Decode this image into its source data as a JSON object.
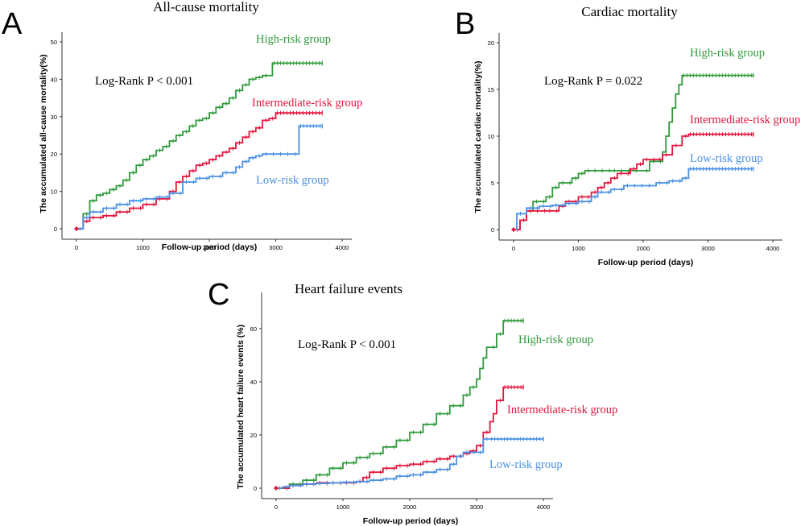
{
  "chart_data": [
    {
      "type": "line",
      "panel": "A",
      "title": "All-cause mortality",
      "xlabel": "Follow-up period (days)",
      "ylabel": "The accumulated all-cause mortality(%)",
      "xlim": [
        0,
        4000
      ],
      "ylim": [
        0,
        50
      ],
      "xticks": [
        0,
        1000,
        2000,
        3000,
        4000
      ],
      "yticks": [
        0,
        10,
        20,
        30,
        40,
        50
      ],
      "annotation": "Log-Rank P < 0.001",
      "series": [
        {
          "name": "High-risk group",
          "color": "#2e9a3b",
          "x": [
            0,
            100,
            200,
            300,
            400,
            500,
            600,
            700,
            800,
            900,
            1000,
            1100,
            1200,
            1300,
            1400,
            1500,
            1600,
            1700,
            1800,
            1900,
            2000,
            2100,
            2200,
            2300,
            2400,
            2500,
            2600,
            2700,
            2800,
            2900,
            2950,
            3700
          ],
          "y": [
            0,
            4,
            7.5,
            9,
            9.5,
            10.5,
            11.5,
            13,
            15,
            17,
            18.5,
            19.5,
            21,
            22,
            23.5,
            25,
            26,
            27.5,
            29,
            29.5,
            31,
            32.5,
            33.5,
            35,
            37,
            38.5,
            40,
            40.5,
            41,
            41,
            44.3,
            44.3
          ]
        },
        {
          "name": "Intermediate-risk group",
          "color": "#e2153c",
          "x": [
            0,
            100,
            200,
            400,
            600,
            800,
            1000,
            1200,
            1400,
            1500,
            1600,
            1700,
            1800,
            1900,
            2000,
            2100,
            2200,
            2300,
            2400,
            2500,
            2600,
            2700,
            2800,
            2900,
            3000,
            3700
          ],
          "y": [
            0,
            2,
            3,
            3.5,
            4.5,
            5.5,
            6.5,
            8,
            10,
            12.5,
            14,
            15.5,
            17,
            17.5,
            18.5,
            19.5,
            20.5,
            21.5,
            23,
            24.5,
            26,
            27,
            29,
            29.5,
            31,
            31
          ]
        },
        {
          "name": "Low-risk group",
          "color": "#4a90e2",
          "x": [
            0,
            100,
            200,
            400,
            600,
            800,
            1000,
            1200,
            1400,
            1600,
            1800,
            2000,
            2200,
            2400,
            2500,
            2600,
            2700,
            2800,
            3300,
            3350,
            3700
          ],
          "y": [
            0,
            3,
            4.5,
            5.5,
            6.5,
            7.5,
            8,
            8.5,
            9.5,
            12.5,
            13.5,
            14,
            15,
            16.5,
            18,
            19,
            19.5,
            20,
            20,
            27.5,
            27.5
          ]
        }
      ]
    },
    {
      "type": "line",
      "panel": "B",
      "title": "Cardiac mortality",
      "xlabel": "Follow-up period (days)",
      "ylabel": "The accumulated cardiac mortality(%)",
      "xlim": [
        0,
        4000
      ],
      "ylim": [
        0,
        20
      ],
      "xticks": [
        0,
        1000,
        2000,
        3000,
        4000
      ],
      "yticks": [
        0,
        5,
        10,
        15,
        20
      ],
      "annotation": "Log-Rank P = 0.022",
      "series": [
        {
          "name": "High-risk group",
          "color": "#2e9a3b",
          "x": [
            0,
            100,
            200,
            300,
            500,
            600,
            700,
            900,
            1000,
            1100,
            1200,
            1500,
            2000,
            2100,
            2300,
            2350,
            2400,
            2450,
            2500,
            2550,
            2600,
            3700
          ],
          "y": [
            0,
            1,
            2,
            3,
            3.5,
            4.5,
            5,
            5.5,
            6,
            6.3,
            6.3,
            6.3,
            6.3,
            7.3,
            8.3,
            10,
            11.5,
            13,
            14.5,
            15.5,
            16.5,
            16.5
          ]
        },
        {
          "name": "Intermediate-risk group",
          "color": "#e2153c",
          "x": [
            0,
            100,
            200,
            500,
            700,
            800,
            900,
            1000,
            1100,
            1200,
            1300,
            1400,
            1500,
            1600,
            1800,
            1900,
            2000,
            2200,
            2300,
            2450,
            2600,
            2700,
            3700
          ],
          "y": [
            0,
            1,
            2,
            2,
            2.5,
            3,
            3,
            3.5,
            3.5,
            4,
            4.5,
            5,
            5.5,
            6,
            6.5,
            7,
            7.5,
            7.5,
            8,
            9,
            10,
            10.2,
            10.2
          ]
        },
        {
          "name": "Low-risk group",
          "color": "#4a90e2",
          "x": [
            0,
            50,
            200,
            400,
            600,
            800,
            1000,
            1200,
            1300,
            1500,
            1700,
            2200,
            2400,
            2600,
            2700,
            3700
          ],
          "y": [
            0,
            1.7,
            2.3,
            2.5,
            2.6,
            2.8,
            3,
            3.5,
            4,
            4.3,
            4.7,
            5,
            5.2,
            5.5,
            6.5,
            6.5
          ]
        }
      ]
    },
    {
      "type": "line",
      "panel": "C",
      "title": "Heart failure events",
      "xlabel": "Follow-up period (days)",
      "ylabel": "The accumulated heart failure events (%)",
      "xlim": [
        0,
        4000
      ],
      "ylim": [
        0,
        70
      ],
      "xticks": [
        0,
        1000,
        2000,
        3000,
        4000
      ],
      "yticks": [
        0,
        20,
        40,
        60
      ],
      "annotation": "Log-Rank P < 0.001",
      "series": [
        {
          "name": "High-risk group",
          "color": "#2e9a3b",
          "x": [
            0,
            200,
            400,
            600,
            800,
            1000,
            1200,
            1400,
            1600,
            1800,
            2000,
            2200,
            2400,
            2600,
            2800,
            2900,
            3000,
            3050,
            3100,
            3150,
            3200,
            3300,
            3400,
            3700
          ],
          "y": [
            0,
            1.5,
            3,
            5,
            7.5,
            9.5,
            11.5,
            13,
            15.5,
            18,
            21,
            24,
            28,
            31,
            35,
            38,
            41,
            45,
            49,
            53,
            53,
            58,
            63,
            63
          ]
        },
        {
          "name": "Intermediate-risk group",
          "color": "#e2153c",
          "x": [
            0,
            200,
            400,
            600,
            800,
            1000,
            1200,
            1300,
            1400,
            1600,
            1800,
            2000,
            2200,
            2400,
            2600,
            2800,
            2900,
            3000,
            3100,
            3200,
            3250,
            3300,
            3400,
            3700
          ],
          "y": [
            0,
            1,
            1.5,
            2,
            2,
            2,
            2.5,
            4,
            6,
            7.5,
            8.5,
            9,
            10,
            11,
            12,
            13,
            14,
            16,
            21,
            25,
            28,
            33,
            38,
            38
          ]
        },
        {
          "name": "Low-risk group",
          "color": "#4a90e2",
          "x": [
            0,
            100,
            200,
            400,
            600,
            800,
            1000,
            1200,
            1400,
            1600,
            1800,
            2000,
            2200,
            2400,
            2600,
            2700,
            2800,
            3000,
            3100,
            3200,
            4000
          ],
          "y": [
            0,
            0.5,
            1,
            1.5,
            1.8,
            2,
            2.2,
            2.5,
            3,
            3.5,
            4.5,
            5,
            6,
            7,
            9,
            12,
            13.5,
            13.5,
            18.5,
            18.5,
            18.5
          ]
        }
      ]
    }
  ]
}
